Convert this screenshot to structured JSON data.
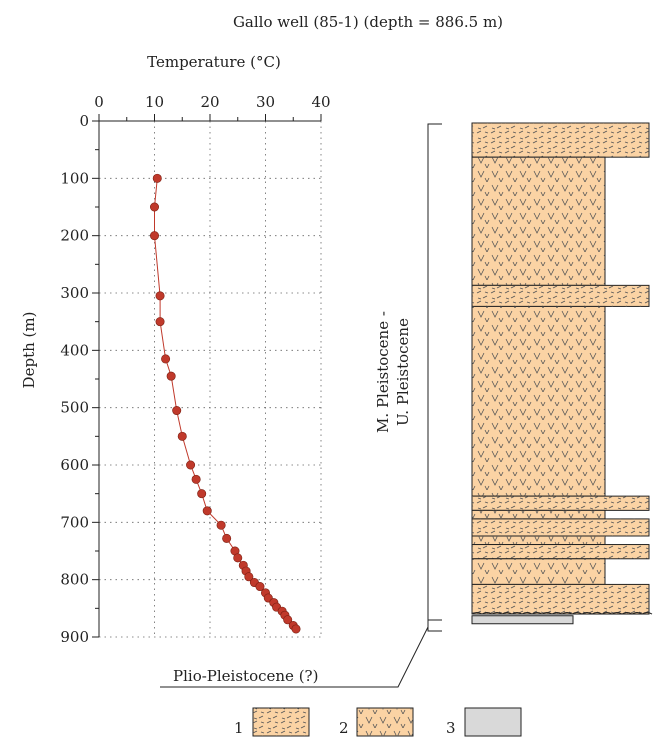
{
  "figure": {
    "title": "Gallo well (85-1) (depth = 886.5 m)",
    "formation_label_line1": "M. Pleistocene -",
    "formation_label_line2": "U. Pleistocene",
    "basal_unit_label": "Plio-Pleistocene (?)",
    "legend": [
      {
        "number": "1",
        "lithology": "lithology-1"
      },
      {
        "number": "2",
        "lithology": "lithology-2"
      },
      {
        "number": "3",
        "lithology": "lithology-3"
      }
    ],
    "colors": {
      "series": "#c0392b",
      "series_edge": "#7a1f12",
      "lithology_fill": "#fbd3a4",
      "lithology_3_fill": "#d9d9d9",
      "hatch": "#555555"
    }
  },
  "chart_data": {
    "type": "scatter",
    "title": "",
    "xlabel": "Temperature (°C)",
    "ylabel": "Depth (m)",
    "x_axis_position": "top",
    "y_axis_inverted": true,
    "xlim": [
      0,
      40
    ],
    "ylim": [
      0,
      900
    ],
    "xticks": [
      0,
      10,
      20,
      30,
      40
    ],
    "yticks": [
      0,
      100,
      200,
      300,
      400,
      500,
      600,
      700,
      800,
      900
    ],
    "grid": "dotted",
    "series": [
      {
        "x": [
          10.5,
          10,
          10,
          11,
          11,
          12,
          13,
          14,
          15,
          16.5,
          17.5,
          18.5,
          19.5,
          22,
          23,
          24.5,
          25,
          26,
          26.5,
          27,
          28,
          29,
          30,
          30.5,
          31.5,
          32,
          33,
          33.5,
          34,
          35,
          35.5
        ],
        "y": [
          100,
          150,
          200,
          305,
          350,
          415,
          445,
          505,
          550,
          600,
          625,
          650,
          680,
          705,
          728,
          750,
          762,
          775,
          785,
          795,
          805,
          812,
          823,
          832,
          840,
          848,
          855,
          862,
          870,
          880,
          886
        ]
      }
    ]
  },
  "log_column": {
    "depth_range": [
      0,
      886.5
    ],
    "layers": [
      {
        "top": 0,
        "bottom": 60,
        "lithology": 1,
        "width": "wide"
      },
      {
        "top": 60,
        "bottom": 285,
        "lithology": 2,
        "width": "narrow"
      },
      {
        "top": 285,
        "bottom": 322,
        "lithology": 1,
        "width": "wide"
      },
      {
        "top": 322,
        "bottom": 655,
        "lithology": 2,
        "width": "narrow"
      },
      {
        "top": 655,
        "bottom": 680,
        "lithology": 1,
        "width": "wide"
      },
      {
        "top": 680,
        "bottom": 695,
        "lithology": 2,
        "width": "narrow"
      },
      {
        "top": 695,
        "bottom": 725,
        "lithology": 1,
        "width": "wide"
      },
      {
        "top": 725,
        "bottom": 740,
        "lithology": 2,
        "width": "narrow"
      },
      {
        "top": 740,
        "bottom": 765,
        "lithology": 1,
        "width": "wide"
      },
      {
        "top": 765,
        "bottom": 810,
        "lithology": 2,
        "width": "narrow"
      },
      {
        "top": 810,
        "bottom": 862,
        "lithology": 1,
        "width": "wide"
      },
      {
        "top": 865,
        "bottom": 885,
        "lithology": 3,
        "width": "base"
      }
    ]
  }
}
